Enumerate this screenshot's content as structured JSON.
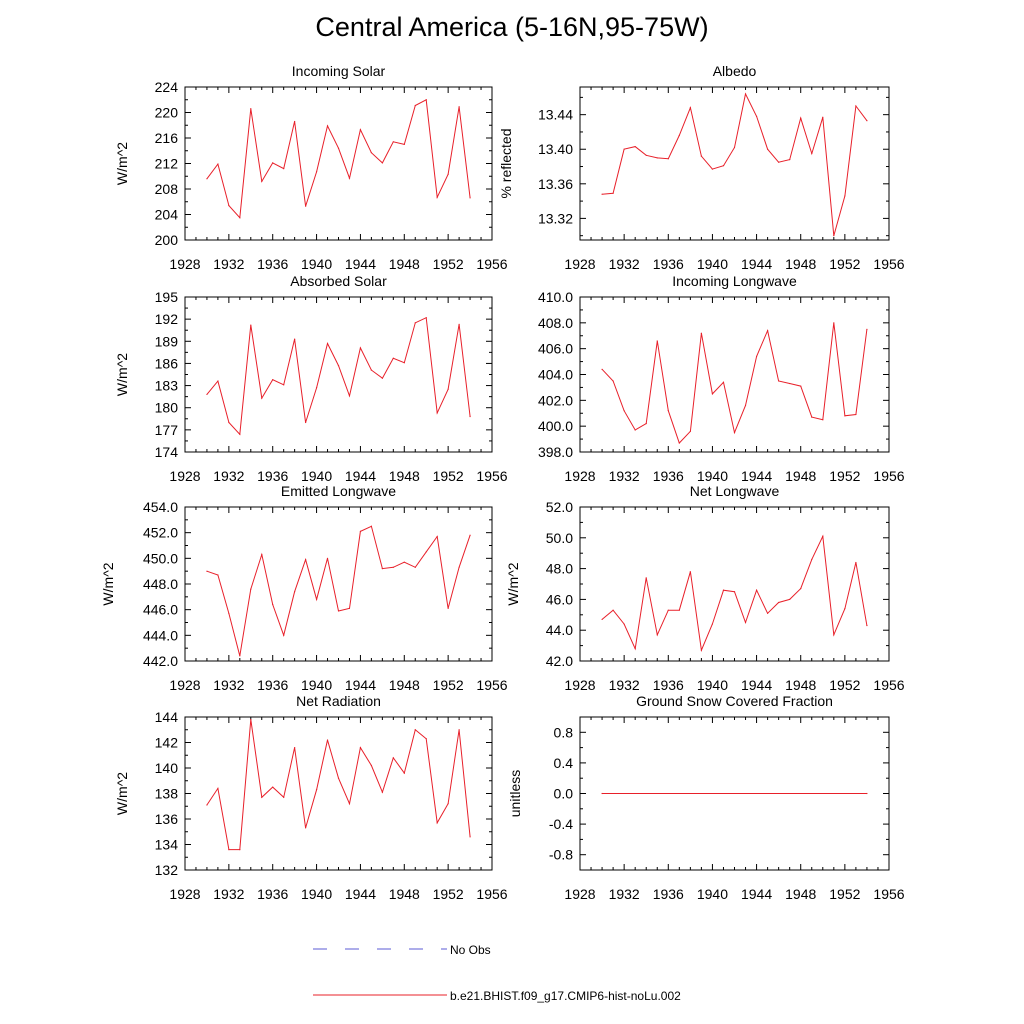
{
  "figure": {
    "title": "Central America (5-16N,95-75W)",
    "legend": [
      {
        "label": "No Obs",
        "color": "#5b5bd6",
        "style": "dashed"
      },
      {
        "label": "b.e21.BHIST.f09_g17.CMIP6-hist-noLu.002",
        "color": "#e8202a",
        "style": "solid"
      }
    ]
  },
  "chart_data": [
    {
      "type": "line",
      "title": "Incoming Solar",
      "ylabel": "W/m^2",
      "xlim": [
        1928,
        1956
      ],
      "ylim": [
        200,
        224
      ],
      "xticks": [
        1928,
        1932,
        1936,
        1940,
        1944,
        1948,
        1952,
        1956
      ],
      "yticks": [
        200,
        204,
        208,
        212,
        216,
        220,
        224
      ],
      "ytick_labels": [
        "200",
        "204",
        "208",
        "212",
        "216",
        "220",
        "224"
      ],
      "x": [
        1930,
        1931,
        1932,
        1933,
        1934,
        1935,
        1936,
        1937,
        1938,
        1939,
        1940,
        1941,
        1942,
        1943,
        1944,
        1945,
        1946,
        1947,
        1948,
        1949,
        1950,
        1951,
        1952,
        1953,
        1954
      ],
      "series": [
        {
          "color": "#e8202a",
          "values": [
            209.6,
            211.9,
            205.4,
            203.5,
            220.6,
            209.2,
            212.1,
            211.2,
            218.6,
            205.3,
            210.7,
            217.9,
            214.4,
            209.7,
            217.3,
            213.7,
            212.1,
            215.4,
            215.0,
            221.1,
            222.0,
            206.7,
            210.3,
            220.9,
            206.6
          ]
        }
      ]
    },
    {
      "type": "line",
      "title": "Albedo",
      "ylabel": "% reflected",
      "xlim": [
        1928,
        1956
      ],
      "ylim": [
        13.295,
        13.472
      ],
      "xticks": [
        1928,
        1932,
        1936,
        1940,
        1944,
        1948,
        1952,
        1956
      ],
      "yticks": [
        13.32,
        13.36,
        13.4,
        13.44
      ],
      "ytick_labels": [
        "13.32",
        "13.36",
        "13.40",
        "13.44"
      ],
      "x": [
        1930,
        1931,
        1932,
        1933,
        1934,
        1935,
        1936,
        1937,
        1938,
        1939,
        1940,
        1941,
        1942,
        1943,
        1944,
        1945,
        1946,
        1947,
        1948,
        1949,
        1950,
        1951,
        1952,
        1953,
        1954
      ],
      "series": [
        {
          "color": "#e8202a",
          "values": [
            13.348,
            13.349,
            13.4,
            13.403,
            13.393,
            13.39,
            13.389,
            13.416,
            13.448,
            13.392,
            13.377,
            13.381,
            13.402,
            13.464,
            13.438,
            13.4,
            13.385,
            13.388,
            13.436,
            13.395,
            13.437,
            13.3,
            13.346,
            13.45,
            13.433
          ]
        }
      ]
    },
    {
      "type": "line",
      "title": "Absorbed Solar",
      "ylabel": "W/m^2",
      "xlim": [
        1928,
        1956
      ],
      "ylim": [
        174,
        195
      ],
      "xticks": [
        1928,
        1932,
        1936,
        1940,
        1944,
        1948,
        1952,
        1956
      ],
      "yticks": [
        174,
        177,
        180,
        183,
        186,
        189,
        192,
        195
      ],
      "ytick_labels": [
        "174",
        "177",
        "180",
        "183",
        "186",
        "189",
        "192",
        "195"
      ],
      "x": [
        1930,
        1931,
        1932,
        1933,
        1934,
        1935,
        1936,
        1937,
        1938,
        1939,
        1940,
        1941,
        1942,
        1943,
        1944,
        1945,
        1946,
        1947,
        1948,
        1949,
        1950,
        1951,
        1952,
        1953,
        1954
      ],
      "series": [
        {
          "color": "#e8202a",
          "values": [
            181.8,
            183.6,
            178.0,
            176.4,
            191.2,
            181.3,
            183.8,
            183.1,
            189.3,
            178.0,
            182.7,
            188.7,
            185.7,
            181.6,
            188.1,
            185.1,
            184.0,
            186.7,
            186.1,
            191.5,
            192.2,
            179.3,
            182.5,
            191.3,
            178.8
          ]
        }
      ]
    },
    {
      "type": "line",
      "title": "Incoming Longwave",
      "ylabel": "",
      "xlim": [
        1928,
        1956
      ],
      "ylim": [
        398,
        410
      ],
      "xticks": [
        1928,
        1932,
        1936,
        1940,
        1944,
        1948,
        1952,
        1956
      ],
      "yticks": [
        398,
        400,
        402,
        404,
        406,
        408,
        410
      ],
      "ytick_labels": [
        "398.0",
        "400.0",
        "402.0",
        "404.0",
        "406.0",
        "408.0",
        "410.0"
      ],
      "x": [
        1930,
        1931,
        1932,
        1933,
        1934,
        1935,
        1936,
        1937,
        1938,
        1939,
        1940,
        1941,
        1942,
        1943,
        1944,
        1945,
        1946,
        1947,
        1948,
        1949,
        1950,
        1951,
        1952,
        1953,
        1954
      ],
      "series": [
        {
          "color": "#e8202a",
          "values": [
            404.4,
            403.5,
            401.2,
            399.7,
            400.2,
            406.6,
            401.2,
            398.7,
            399.6,
            407.2,
            402.5,
            403.4,
            399.5,
            401.6,
            405.4,
            407.4,
            403.5,
            403.3,
            403.1,
            400.7,
            400.5,
            408.0,
            400.8,
            400.9,
            407.5
          ]
        }
      ]
    },
    {
      "type": "line",
      "title": "Emitted Longwave",
      "ylabel": "W/m^2",
      "xlim": [
        1928,
        1956
      ],
      "ylim": [
        442,
        454
      ],
      "xticks": [
        1928,
        1932,
        1936,
        1940,
        1944,
        1948,
        1952,
        1956
      ],
      "yticks": [
        442,
        444,
        446,
        448,
        450,
        452,
        454
      ],
      "ytick_labels": [
        "442.0",
        "444.0",
        "446.0",
        "448.0",
        "450.0",
        "452.0",
        "454.0"
      ],
      "x": [
        1930,
        1931,
        1932,
        1933,
        1934,
        1935,
        1936,
        1937,
        1938,
        1939,
        1940,
        1941,
        1942,
        1943,
        1944,
        1945,
        1946,
        1947,
        1948,
        1949,
        1950,
        1951,
        1952,
        1953,
        1954
      ],
      "series": [
        {
          "color": "#e8202a",
          "values": [
            449.0,
            448.7,
            445.7,
            442.4,
            447.6,
            450.3,
            446.4,
            444.0,
            447.4,
            449.9,
            446.8,
            450.0,
            445.9,
            446.1,
            452.1,
            452.5,
            449.2,
            449.3,
            449.7,
            449.3,
            450.5,
            451.7,
            446.1,
            449.3,
            451.8
          ]
        }
      ]
    },
    {
      "type": "line",
      "title": "Net Longwave",
      "ylabel": "W/m^2",
      "xlim": [
        1928,
        1956
      ],
      "ylim": [
        42,
        52
      ],
      "xticks": [
        1928,
        1932,
        1936,
        1940,
        1944,
        1948,
        1952,
        1956
      ],
      "yticks": [
        42,
        44,
        46,
        48,
        50,
        52
      ],
      "ytick_labels": [
        "42.0",
        "44.0",
        "46.0",
        "48.0",
        "50.0",
        "52.0"
      ],
      "x": [
        1930,
        1931,
        1932,
        1933,
        1934,
        1935,
        1936,
        1937,
        1938,
        1939,
        1940,
        1941,
        1942,
        1943,
        1944,
        1945,
        1946,
        1947,
        1948,
        1949,
        1950,
        1951,
        1952,
        1953,
        1954
      ],
      "series": [
        {
          "color": "#e8202a",
          "values": [
            44.7,
            45.3,
            44.4,
            42.8,
            47.4,
            43.7,
            45.3,
            45.3,
            47.8,
            42.7,
            44.4,
            46.6,
            46.5,
            44.5,
            46.6,
            45.1,
            45.8,
            46.0,
            46.7,
            48.6,
            50.1,
            43.7,
            45.4,
            48.4,
            44.3
          ]
        }
      ]
    },
    {
      "type": "line",
      "title": "Net Radiation",
      "ylabel": "W/m^2",
      "xlim": [
        1928,
        1956
      ],
      "ylim": [
        132,
        144
      ],
      "xticks": [
        1928,
        1932,
        1936,
        1940,
        1944,
        1948,
        1952,
        1956
      ],
      "yticks": [
        132,
        134,
        136,
        138,
        140,
        142,
        144
      ],
      "ytick_labels": [
        "132",
        "134",
        "136",
        "138",
        "140",
        "142",
        "144"
      ],
      "x": [
        1930,
        1931,
        1932,
        1933,
        1934,
        1935,
        1936,
        1937,
        1938,
        1939,
        1940,
        1941,
        1942,
        1943,
        1944,
        1945,
        1946,
        1947,
        1948,
        1949,
        1950,
        1951,
        1952,
        1953,
        1954
      ],
      "series": [
        {
          "color": "#e8202a",
          "values": [
            137.1,
            138.4,
            133.6,
            133.6,
            143.8,
            137.7,
            138.5,
            137.7,
            141.6,
            135.3,
            138.3,
            142.2,
            139.2,
            137.2,
            141.6,
            140.2,
            138.1,
            140.8,
            139.6,
            143.0,
            142.3,
            135.7,
            137.2,
            143.0,
            134.6
          ]
        }
      ]
    },
    {
      "type": "line",
      "title": "Ground Snow Covered Fraction",
      "ylabel": "unitless",
      "xlim": [
        1928,
        1956
      ],
      "ylim": [
        -1.0,
        1.0
      ],
      "xticks": [
        1928,
        1932,
        1936,
        1940,
        1944,
        1948,
        1952,
        1956
      ],
      "yticks": [
        -0.8,
        -0.4,
        0.0,
        0.4,
        0.8
      ],
      "ytick_labels": [
        "-0.8",
        "-0.4",
        "0.0",
        "0.4",
        "0.8"
      ],
      "x": [
        1930,
        1954
      ],
      "series": [
        {
          "color": "#e8202a",
          "values": [
            0.0,
            0.0
          ]
        }
      ]
    }
  ]
}
